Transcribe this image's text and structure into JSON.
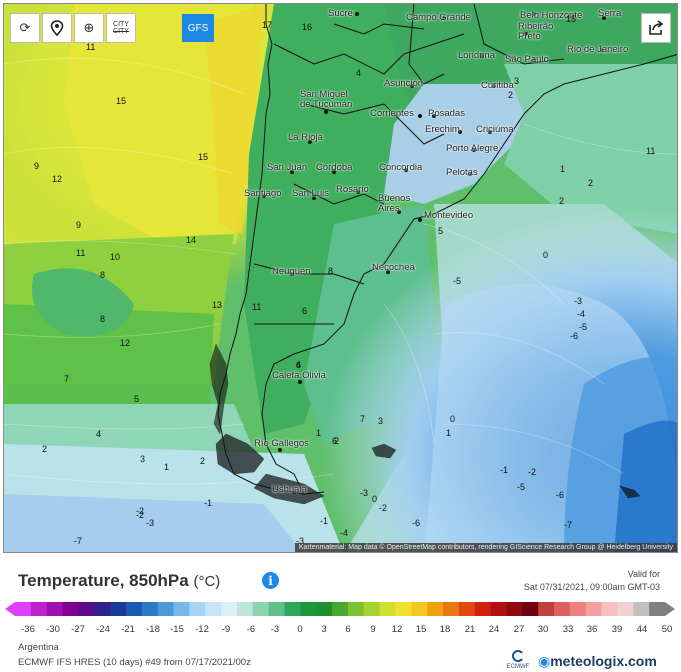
{
  "toolbar": {
    "city_label_line1": "CITY",
    "city_label_line2": "CITY",
    "gfs_label": "GFS"
  },
  "cities": [
    {
      "name": "Sucre"
    },
    {
      "name": "Campo Grande"
    },
    {
      "name": "Belo Horizonte"
    },
    {
      "name": "Serra"
    },
    {
      "name": "Ribeirão Preto"
    },
    {
      "name": "Rio de Janeiro"
    },
    {
      "name": "Londrina"
    },
    {
      "name": "São Paulo"
    },
    {
      "name": "Asunción"
    },
    {
      "name": "Curitiba"
    },
    {
      "name": "San Miguel de Tucumán"
    },
    {
      "name": "Corrientes"
    },
    {
      "name": "Posadas"
    },
    {
      "name": "Erechim"
    },
    {
      "name": "Criciúma"
    },
    {
      "name": "La Rioja"
    },
    {
      "name": "Porto Alegre"
    },
    {
      "name": "San Juan"
    },
    {
      "name": "Córdoba"
    },
    {
      "name": "Concordia"
    },
    {
      "name": "Pelotas"
    },
    {
      "name": "Santiago"
    },
    {
      "name": "San Luis"
    },
    {
      "name": "Rosario"
    },
    {
      "name": "Buenos Aires"
    },
    {
      "name": "Montevideo"
    },
    {
      "name": "Neuquén"
    },
    {
      "name": "Necochea"
    },
    {
      "name": "Caleta Olivia"
    },
    {
      "name": "Río Gallegos"
    },
    {
      "name": "Ushuaia"
    }
  ],
  "contour_values": [
    "17",
    "16",
    "15",
    "11",
    "15",
    "11",
    "15",
    "9",
    "12",
    "14",
    "11",
    "9",
    "10",
    "8",
    "13",
    "12",
    "7",
    "8",
    "5",
    "4",
    "2",
    "3",
    "1",
    "2",
    "1",
    "-1",
    "-2",
    "-3",
    "-7",
    "4",
    "3",
    "2",
    "1",
    "2",
    "0",
    "5",
    "2",
    "7",
    "6",
    "4",
    "11",
    "3",
    "2",
    "-5",
    "-3",
    "-4",
    "-5",
    "-6",
    "0",
    "1",
    "-1",
    "-2",
    "-5",
    "-6",
    "-7",
    "-2",
    "-4",
    "-6",
    "-3",
    "-1",
    "-2",
    "-3",
    "0",
    "6",
    "8",
    "6"
  ],
  "attribution": "Kartenmaterial: Map data © OpenStreetMap contributors, rendering GIScience Research Group @ Heidelberg University",
  "legend": {
    "title": "Temperature, 850hPa",
    "unit": "(°C)",
    "valid_for_label": "Valid for",
    "valid_time": "Sat 07/31/2021, 09:00am GMT-03",
    "ticks": [
      "-36",
      "-30",
      "-27",
      "-24",
      "-21",
      "-18",
      "-15",
      "-12",
      "-9",
      "-6",
      "-3",
      "0",
      "3",
      "6",
      "9",
      "12",
      "15",
      "18",
      "21",
      "24",
      "27",
      "30",
      "33",
      "36",
      "39",
      "44",
      "50"
    ]
  },
  "footer": {
    "region": "Argentina",
    "model": "ECMWF IFS HRES (10 days) #49 from 07/17/2021/00z",
    "ecmwf_logo_text": "ECMWF",
    "brand": "meteologix.com"
  },
  "colors": {
    "accent": "#1e88e5",
    "scale": [
      "#e040fb",
      "#c020d0",
      "#a010b0",
      "#800090",
      "#5a0a8a",
      "#30208a",
      "#1a3a9a",
      "#1a5ab0",
      "#2a7ac8",
      "#4a9ad8",
      "#78b8e8",
      "#a8d4f4",
      "#c8e4f8",
      "#dceefa",
      "#bde5d5",
      "#8fd3b0",
      "#5fbf8a",
      "#2fa85e",
      "#199a3c",
      "#1f8f2f",
      "#4aa82e",
      "#7cc22e",
      "#a6d42e",
      "#d0e030",
      "#f0e030",
      "#f4c820",
      "#f0a010",
      "#e87810",
      "#e04810",
      "#d02010",
      "#b01010",
      "#900810",
      "#700010",
      "#c04040",
      "#e06060",
      "#f08080",
      "#f4a0a0",
      "#f8c0c0",
      "#f0d0d0",
      "#c0c0c0",
      "#808080"
    ]
  }
}
